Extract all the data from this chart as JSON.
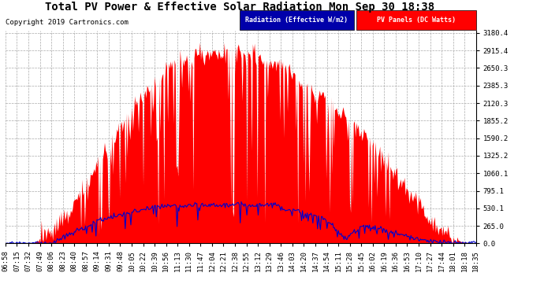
{
  "title": "Total PV Power & Effective Solar Radiation Mon Sep 30 18:38",
  "copyright": "Copyright 2019 Cartronics.com",
  "legend_blue": "Radiation (Effective W/m2)",
  "legend_red": "PV Panels (DC Watts)",
  "y_ticks": [
    0.0,
    265.0,
    530.1,
    795.1,
    1060.1,
    1325.2,
    1590.2,
    1855.2,
    2120.3,
    2385.3,
    2650.3,
    2915.4,
    3180.4
  ],
  "y_max": 3180.4,
  "y_min": 0.0,
  "background_color": "#ffffff",
  "plot_bg_color": "#ffffff",
  "grid_color": "#aaaaaa",
  "red_color": "#ff0000",
  "blue_color": "#0000cc",
  "title_fontsize": 11,
  "tick_fontsize": 6.5,
  "x_labels": [
    "06:58",
    "07:15",
    "07:32",
    "07:49",
    "08:06",
    "08:23",
    "08:40",
    "08:57",
    "09:14",
    "09:31",
    "09:48",
    "10:05",
    "10:22",
    "10:39",
    "10:56",
    "11:13",
    "11:30",
    "11:47",
    "12:04",
    "12:21",
    "12:38",
    "12:55",
    "13:12",
    "13:29",
    "13:46",
    "14:03",
    "14:20",
    "14:37",
    "14:54",
    "15:11",
    "15:28",
    "15:45",
    "16:02",
    "16:19",
    "16:36",
    "16:53",
    "17:10",
    "17:27",
    "17:44",
    "18:01",
    "18:18",
    "18:35"
  ]
}
